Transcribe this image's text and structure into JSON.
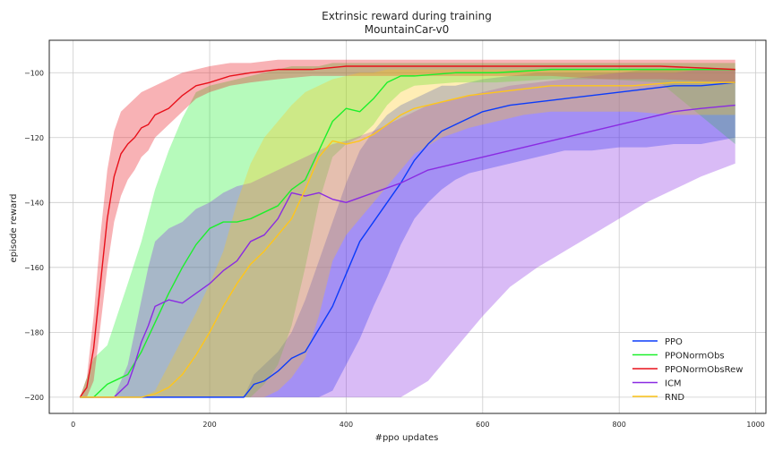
{
  "chart_data": {
    "type": "line",
    "title": "Extrinsic reward during training",
    "subtitle": "MountainCar-v0",
    "xlabel": "#ppo updates",
    "ylabel": "episode reward",
    "xlim": [
      -35,
      1015
    ],
    "ylim": [
      -205,
      -90
    ],
    "xticks": [
      0,
      200,
      400,
      600,
      800,
      1000
    ],
    "yticks": [
      -200,
      -180,
      -160,
      -140,
      -120,
      -100
    ],
    "xtick_labels": [
      "0",
      "200",
      "400",
      "600",
      "800",
      "1000"
    ],
    "ytick_labels": [
      "−200",
      "−180",
      "−160",
      "−140",
      "−120",
      "−100"
    ],
    "grid": true,
    "legend_position": "bottom-right",
    "series": [
      {
        "name": "PPO",
        "color": "#0b3bfa",
        "x": [
          10,
          100,
          200,
          250,
          265,
          280,
          300,
          320,
          340,
          360,
          380,
          400,
          420,
          440,
          460,
          480,
          500,
          520,
          540,
          560,
          580,
          600,
          640,
          680,
          720,
          760,
          800,
          840,
          880,
          920,
          970
        ],
        "y": [
          -200,
          -200,
          -200,
          -200,
          -196,
          -195,
          -192,
          -188,
          -186,
          -179,
          -172,
          -162,
          -152,
          -146,
          -140,
          -134,
          -127,
          -122,
          -118,
          -116,
          -114,
          -112,
          -110,
          -109,
          -108,
          -107,
          -106,
          -105,
          -104,
          -104,
          -103
        ],
        "band_lower": [
          -200,
          -200,
          -200,
          -200,
          -200,
          -200,
          -200,
          -200,
          -200,
          -200,
          -198,
          -190,
          -182,
          -172,
          -163,
          -153,
          -145,
          -140,
          -136,
          -133,
          -131,
          -130,
          -128,
          -126,
          -124,
          -124,
          -123,
          -123,
          -122,
          -122,
          -120
        ],
        "band_upper": [
          -200,
          -200,
          -200,
          -200,
          -193,
          -190,
          -186,
          -180,
          -170,
          -158,
          -146,
          -134,
          -124,
          -118,
          -113,
          -110,
          -108,
          -106,
          -104,
          -104,
          -103,
          -102,
          -101,
          -100,
          -100,
          -100,
          -100,
          -99,
          -99,
          -99,
          -99
        ]
      },
      {
        "name": "PPONormObs",
        "color": "#1cf02b",
        "x": [
          10,
          30,
          50,
          80,
          100,
          120,
          140,
          160,
          180,
          200,
          220,
          240,
          260,
          280,
          300,
          320,
          340,
          360,
          380,
          400,
          420,
          440,
          460,
          480,
          500,
          560,
          620,
          700,
          780,
          860,
          970
        ],
        "y": [
          -200,
          -200,
          -196,
          -193,
          -186,
          -177,
          -168,
          -160,
          -153,
          -148,
          -146,
          -146,
          -145,
          -143,
          -141,
          -136,
          -133,
          -124,
          -115,
          -111,
          -112,
          -108,
          -103,
          -101,
          -101,
          -100,
          -100,
          -99,
          -99,
          -99,
          -99
        ],
        "band_lower": [
          -200,
          -200,
          -200,
          -200,
          -200,
          -200,
          -200,
          -200,
          -200,
          -200,
          -200,
          -200,
          -200,
          -196,
          -190,
          -178,
          -160,
          -140,
          -126,
          -122,
          -120,
          -116,
          -110,
          -106,
          -104,
          -103,
          -103,
          -102,
          -102,
          -103,
          -122
        ],
        "band_upper": [
          -200,
          -188,
          -184,
          -165,
          -152,
          -136,
          -124,
          -114,
          -106,
          -104,
          -103,
          -102,
          -101,
          -100,
          -99,
          -98,
          -98,
          -98,
          -97,
          -97,
          -97,
          -97,
          -97,
          -97,
          -97,
          -97,
          -97,
          -97,
          -97,
          -97,
          -97
        ]
      },
      {
        "name": "PPONormObsRew",
        "color": "#e8101a",
        "x": [
          10,
          20,
          30,
          40,
          50,
          60,
          70,
          80,
          90,
          100,
          110,
          120,
          140,
          160,
          180,
          200,
          230,
          260,
          300,
          350,
          400,
          450,
          500,
          560,
          620,
          700,
          780,
          860,
          970
        ],
        "y": [
          -200,
          -197,
          -185,
          -165,
          -145,
          -132,
          -125,
          -122,
          -120,
          -117,
          -116,
          -113,
          -111,
          -107,
          -104,
          -103,
          -101,
          -100,
          -99,
          -99,
          -98,
          -98,
          -98,
          -98,
          -98,
          -98,
          -98,
          -98,
          -99
        ],
        "band_lower": [
          -200,
          -200,
          -195,
          -178,
          -160,
          -146,
          -138,
          -133,
          -130,
          -126,
          -124,
          -120,
          -116,
          -112,
          -108,
          -106,
          -104,
          -103,
          -102,
          -101,
          -101,
          -101,
          -101,
          -101,
          -101,
          -101,
          -102,
          -102,
          -103
        ],
        "band_upper": [
          -200,
          -194,
          -175,
          -150,
          -130,
          -118,
          -112,
          -110,
          -108,
          -106,
          -105,
          -104,
          -102,
          -100,
          -99,
          -98,
          -97,
          -97,
          -96,
          -96,
          -96,
          -96,
          -96,
          -96,
          -96,
          -96,
          -96,
          -96,
          -96
        ]
      },
      {
        "name": "ICM",
        "color": "#8a2be2",
        "x": [
          10,
          60,
          80,
          90,
          100,
          110,
          120,
          140,
          160,
          180,
          200,
          220,
          240,
          260,
          280,
          300,
          320,
          340,
          360,
          380,
          400,
          440,
          480,
          520,
          560,
          600,
          640,
          680,
          720,
          760,
          800,
          840,
          880,
          920,
          970
        ],
        "y": [
          -200,
          -200,
          -196,
          -190,
          -183,
          -178,
          -172,
          -170,
          -171,
          -168,
          -165,
          -161,
          -158,
          -152,
          -150,
          -145,
          -137,
          -138,
          -137,
          -139,
          -140,
          -137,
          -134,
          -130,
          -128,
          -126,
          -124,
          -122,
          -120,
          -118,
          -116,
          -114,
          -112,
          -111,
          -110
        ],
        "band_lower": [
          -200,
          -200,
          -200,
          -200,
          -200,
          -200,
          -200,
          -200,
          -200,
          -200,
          -200,
          -200,
          -200,
          -200,
          -200,
          -200,
          -200,
          -200,
          -200,
          -200,
          -200,
          -200,
          -200,
          -195,
          -185,
          -175,
          -166,
          -160,
          -155,
          -150,
          -145,
          -140,
          -136,
          -132,
          -128
        ],
        "band_upper": [
          -200,
          -200,
          -190,
          -180,
          -170,
          -160,
          -152,
          -148,
          -146,
          -142,
          -140,
          -137,
          -135,
          -134,
          -132,
          -130,
          -128,
          -126,
          -124,
          -122,
          -121,
          -118,
          -114,
          -110,
          -108,
          -106,
          -104,
          -103,
          -102,
          -101,
          -100,
          -100,
          -100,
          -99,
          -99
        ]
      },
      {
        "name": "RND",
        "color": "#ffc61a",
        "x": [
          10,
          100,
          120,
          140,
          160,
          180,
          200,
          220,
          240,
          260,
          280,
          300,
          320,
          340,
          360,
          380,
          400,
          420,
          440,
          460,
          480,
          500,
          540,
          580,
          620,
          660,
          700,
          760,
          820,
          880,
          970
        ],
        "y": [
          -200,
          -200,
          -199,
          -197,
          -193,
          -187,
          -180,
          -172,
          -165,
          -159,
          -155,
          -150,
          -145,
          -136,
          -126,
          -121,
          -122,
          -121,
          -119,
          -116,
          -113,
          -111,
          -109,
          -107,
          -106,
          -105,
          -104,
          -104,
          -104,
          -103,
          -103
        ],
        "band_lower": [
          -200,
          -200,
          -200,
          -200,
          -200,
          -200,
          -200,
          -200,
          -200,
          -200,
          -200,
          -198,
          -194,
          -188,
          -175,
          -158,
          -150,
          -145,
          -140,
          -135,
          -130,
          -125,
          -120,
          -117,
          -115,
          -113,
          -112,
          -112,
          -112,
          -113,
          -113
        ],
        "band_upper": [
          -200,
          -200,
          -198,
          -190,
          -182,
          -174,
          -165,
          -155,
          -140,
          -128,
          -120,
          -115,
          -110,
          -106,
          -104,
          -102,
          -101,
          -100,
          -100,
          -99,
          -99,
          -99,
          -99,
          -99,
          -99,
          -99,
          -99,
          -99,
          -99,
          -99,
          -99
        ]
      }
    ]
  }
}
